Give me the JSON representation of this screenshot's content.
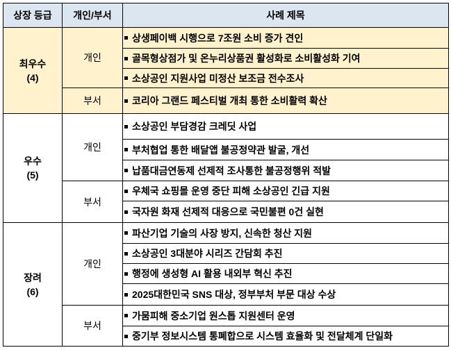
{
  "header": {
    "grade": "상장 등급",
    "type": "개인/부서",
    "title": "사례 제목"
  },
  "colors": {
    "header_bg": "#dce6f1",
    "top_group_bg": "#fff2cc"
  },
  "groups": [
    {
      "grade": "최우수",
      "count": "(4)",
      "highlight": true,
      "sub": [
        {
          "type": "개인",
          "items": [
            "상생페이백 시행으로 7조원 소비 증가 견인",
            "골목형상점가 및 온누리상품권 활성화로 소비활성화 기여",
            "소상공인 지원사업 미정산 보조금 전수조사"
          ]
        },
        {
          "type": "부서",
          "items": [
            "코리아 그랜드 페스티벌 개최 통한 소비활력 확산"
          ]
        }
      ]
    },
    {
      "grade": "우수",
      "count": "(5)",
      "highlight": false,
      "sub": [
        {
          "type": "개인",
          "items": [
            "소상공인 부담경감 크레딧 사업",
            "부처협업 통한 배달앱 불공정약관 발굴, 개선",
            "납품대금연동제 선제적 조사통한 불공정행위 적발"
          ]
        },
        {
          "type": "부서",
          "items": [
            "우체국 쇼핑몰 운영 중단 피해 소상공인 긴급 지원",
            "국자원 화재 선제적 대응으로 국민불편 0건 실현"
          ]
        }
      ]
    },
    {
      "grade": "장려",
      "count": "(6)",
      "highlight": false,
      "sub": [
        {
          "type": "개인",
          "items": [
            "파산기업 기술의 사장 방지, 신속한 청산 지원",
            "소상공인 3대분야 시리즈 간담회 추진",
            "행정에 생성형 AI 활용 내외부 혁신 추진",
            "2025대한민국 SNS 대상, 정부부처 부문 대상 수상"
          ]
        },
        {
          "type": "부서",
          "items": [
            "가뭄피해 중소기업 원스톱 지원센터 운영",
            "중기부 정보시스템 통폐합으로 시스템 효율화 및 전달체계 단일화"
          ]
        }
      ]
    }
  ]
}
